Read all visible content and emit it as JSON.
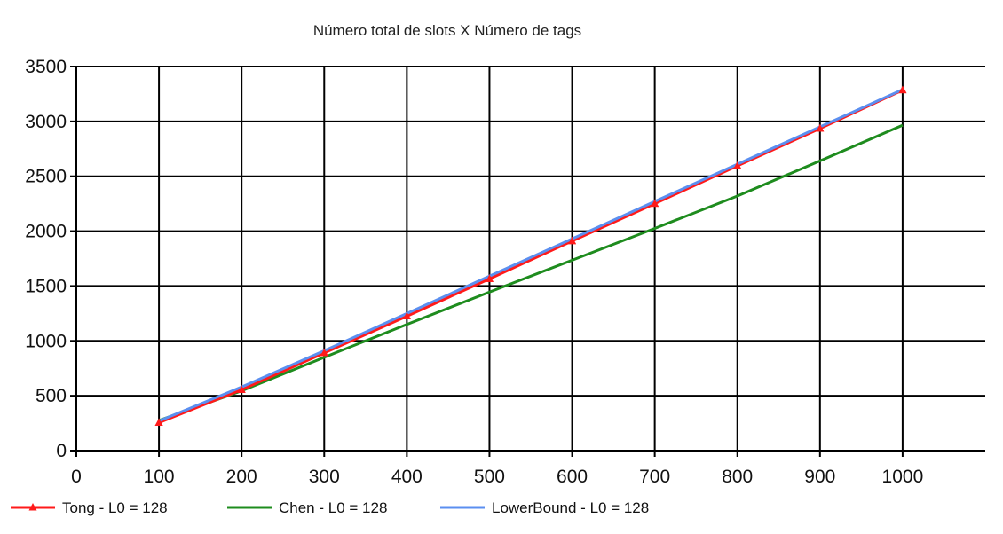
{
  "colors": {
    "background": "#ffffff",
    "grid": "#000000",
    "axis": "#000000",
    "tong": "#ff1a1a",
    "chen": "#1e8c1e",
    "lower_bound": "#5b8ff0"
  },
  "chart_data": {
    "type": "line",
    "title": "Número total de slots X Número de tags",
    "xlabel": "",
    "ylabel": "",
    "xlim": [
      0,
      1100
    ],
    "ylim": [
      0,
      3500
    ],
    "x_ticks": [
      0,
      100,
      200,
      300,
      400,
      500,
      600,
      700,
      800,
      900,
      1000
    ],
    "y_ticks": [
      0,
      500,
      1000,
      1500,
      2000,
      2500,
      3000,
      3500
    ],
    "grid": true,
    "legend_position": "bottom",
    "x": [
      100,
      200,
      300,
      400,
      500,
      600,
      700,
      800,
      900,
      1000
    ],
    "series": [
      {
        "name": "Tong - L0 = 128",
        "color": "#ff1a1a",
        "marker": "triangle",
        "values": [
          255,
          555,
          890,
          1225,
          1565,
          1910,
          2250,
          2595,
          2935,
          3285
        ]
      },
      {
        "name": "Chen - L0 = 128",
        "color": "#1e8c1e",
        "marker": "none",
        "values": [
          275,
          545,
          850,
          1150,
          1445,
          1735,
          2025,
          2320,
          2640,
          2965
        ]
      },
      {
        "name": "LowerBound - L0 = 128",
        "color": "#5b8ff0",
        "marker": "none",
        "values": [
          270,
          580,
          910,
          1250,
          1590,
          1930,
          2270,
          2610,
          2950,
          3290
        ]
      }
    ]
  }
}
